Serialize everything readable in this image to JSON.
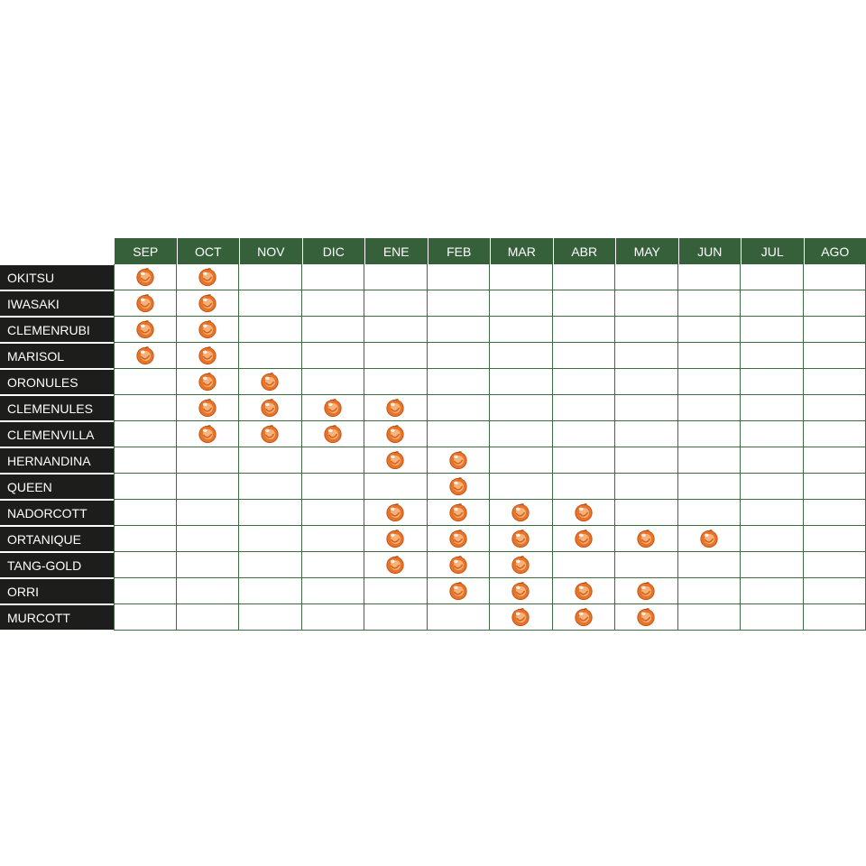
{
  "chart_data": {
    "type": "table",
    "months": [
      "SEP",
      "OCT",
      "NOV",
      "DIC",
      "ENE",
      "FEB",
      "MAR",
      "ABR",
      "MAY",
      "JUN",
      "JUL",
      "AGO"
    ],
    "rows": [
      {
        "variety": "OKITSU",
        "months": [
          "SEP",
          "OCT"
        ]
      },
      {
        "variety": "IWASAKI",
        "months": [
          "SEP",
          "OCT"
        ]
      },
      {
        "variety": "CLEMENRUBI",
        "months": [
          "SEP",
          "OCT"
        ]
      },
      {
        "variety": "MARISOL",
        "months": [
          "SEP",
          "OCT"
        ]
      },
      {
        "variety": "ORONULES",
        "months": [
          "OCT",
          "NOV"
        ]
      },
      {
        "variety": "CLEMENULES",
        "months": [
          "OCT",
          "NOV",
          "DIC",
          "ENE"
        ]
      },
      {
        "variety": "CLEMENVILLA",
        "months": [
          "OCT",
          "NOV",
          "DIC",
          "ENE"
        ]
      },
      {
        "variety": "HERNANDINA",
        "months": [
          "ENE",
          "FEB"
        ]
      },
      {
        "variety": "QUEEN",
        "months": [
          "FEB"
        ]
      },
      {
        "variety": "NADORCOTT",
        "months": [
          "ENE",
          "FEB",
          "MAR",
          "ABR"
        ]
      },
      {
        "variety": "ORTANIQUE",
        "months": [
          "ENE",
          "FEB",
          "MAR",
          "ABR",
          "MAY",
          "JUN"
        ]
      },
      {
        "variety": "TANG-GOLD",
        "months": [
          "ENE",
          "FEB",
          "MAR"
        ]
      },
      {
        "variety": "ORRI",
        "months": [
          "FEB",
          "MAR",
          "ABR",
          "MAY"
        ]
      },
      {
        "variety": "MURCOTT",
        "months": [
          "MAR",
          "ABR",
          "MAY"
        ]
      }
    ],
    "marker_icon": "mandarin-icon",
    "colors": {
      "header_bg": "#36603a",
      "variety_bg": "#1d1d1b",
      "grid": "#3f6b43",
      "fruit": "#e8742a"
    }
  }
}
